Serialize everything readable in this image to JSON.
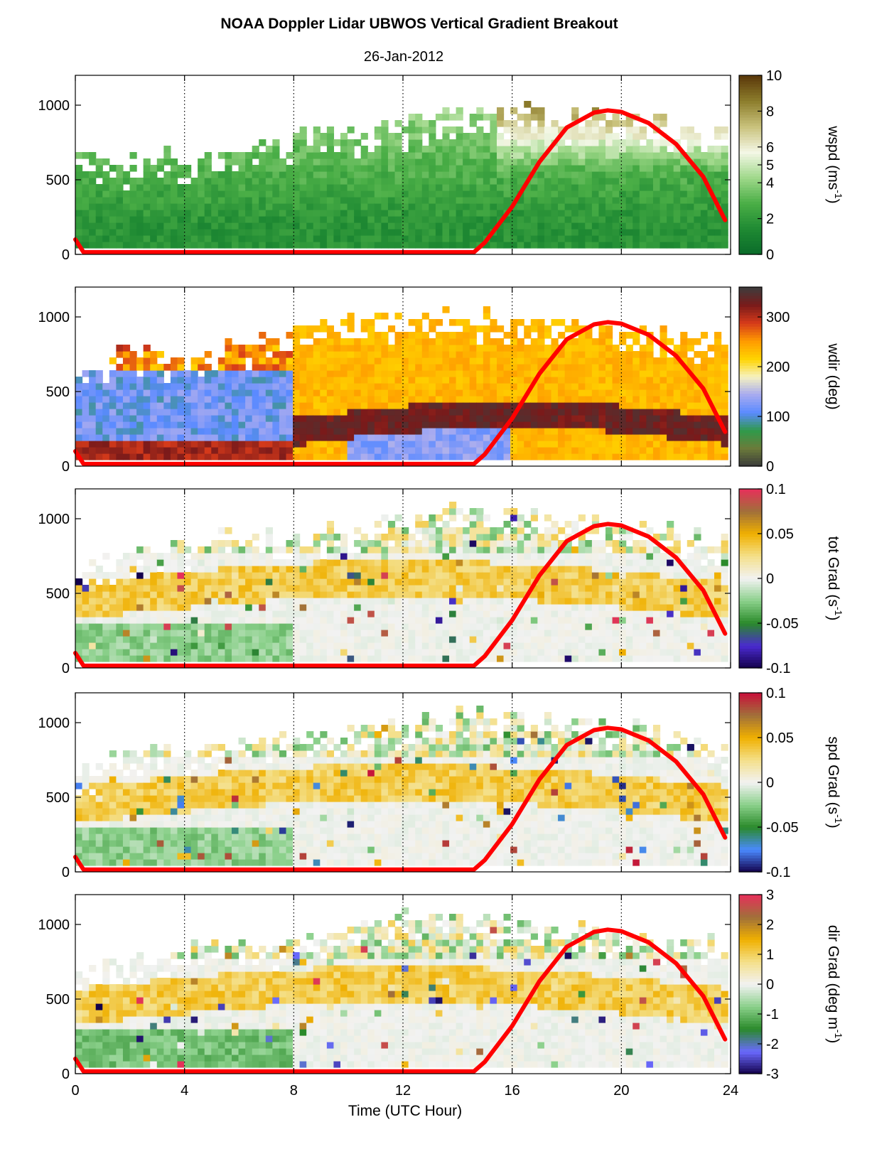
{
  "title": "NOAA Doppler Lidar  UBWOS  Vertical Gradient Breakout",
  "date": "26-Jan-2012",
  "chart_data": {
    "type": "heatmap",
    "x_axis": {
      "label": "Time (UTC Hour)",
      "range": [
        0,
        24
      ],
      "ticks": [
        0,
        4,
        8,
        12,
        16,
        20,
        24
      ],
      "dotted_gridlines": [
        4,
        8,
        12,
        16,
        20
      ]
    },
    "y_axis": {
      "range": [
        0,
        1200
      ],
      "ticks": [
        0,
        500,
        1000
      ]
    },
    "overlay_line": {
      "color": "#ff0000",
      "description_from_chart": "red curve",
      "points": [
        [
          0,
          100
        ],
        [
          0.3,
          15
        ],
        [
          14.6,
          15
        ],
        [
          15,
          80
        ],
        [
          16,
          320
        ],
        [
          17,
          620
        ],
        [
          18,
          850
        ],
        [
          19,
          950
        ],
        [
          19.5,
          965
        ],
        [
          20,
          955
        ],
        [
          21,
          880
        ],
        [
          22,
          740
        ],
        [
          23,
          520
        ],
        [
          23.8,
          230
        ]
      ]
    },
    "panels": [
      {
        "id": "wspd",
        "cbar_label": "wspd (ms",
        "cbar_label_sup": "-1",
        "cbar_label_tail": ")",
        "cbar_ticks": [
          "0",
          "2",
          "4",
          "5",
          "6",
          "8",
          "10"
        ],
        "cbar_tick_values": [
          0,
          2,
          4,
          5,
          6,
          8,
          10
        ],
        "cbar_range": [
          0,
          10
        ],
        "colormap": [
          "#0a6b2a",
          "#1f8a33",
          "#4aae46",
          "#9fd88a",
          "#f4f7e6",
          "#c9c27c",
          "#8d7d2c",
          "#5a380a"
        ],
        "data_top_profile": [
          [
            0,
            650
          ],
          [
            2,
            650
          ],
          [
            4,
            650
          ],
          [
            6,
            720
          ],
          [
            8,
            800
          ],
          [
            10,
            860
          ],
          [
            12,
            900
          ],
          [
            14,
            940
          ],
          [
            16,
            980
          ],
          [
            18,
            960
          ],
          [
            20,
            940
          ],
          [
            22,
            860
          ],
          [
            24,
            820
          ]
        ]
      },
      {
        "id": "wdir",
        "cbar_label": "wdir (deg)",
        "cbar_label_sup": "",
        "cbar_label_tail": "",
        "cbar_ticks": [
          "0",
          "100",
          "200",
          "300"
        ],
        "cbar_tick_values": [
          0,
          100,
          200,
          300
        ],
        "cbar_range": [
          0,
          360
        ],
        "colormap": [
          "#3a3a3a",
          "#6b7a3a",
          "#2f9a4a",
          "#5a8aff",
          "#a7aaf0",
          "#f6f2c0",
          "#ffd400",
          "#ff9a00",
          "#d63a1a",
          "#7a1a1a",
          "#3d3d3d"
        ],
        "data_top_profile": [
          [
            0,
            650
          ],
          [
            2,
            820
          ],
          [
            4,
            700
          ],
          [
            6,
            840
          ],
          [
            8,
            900
          ],
          [
            10,
            960
          ],
          [
            12,
            1000
          ],
          [
            14,
            1020
          ],
          [
            16,
            1000
          ],
          [
            18,
            980
          ],
          [
            20,
            960
          ],
          [
            22,
            900
          ],
          [
            24,
            850
          ]
        ]
      },
      {
        "id": "totgrad",
        "cbar_label": "tot Grad (s",
        "cbar_label_sup": "-1",
        "cbar_label_tail": ")",
        "cbar_ticks": [
          "-0.1",
          "-0.05",
          "0",
          "0.05",
          "0.1"
        ],
        "cbar_tick_values": [
          -0.1,
          -0.05,
          0,
          0.05,
          0.1
        ],
        "cbar_range": [
          -0.1,
          0.1
        ],
        "colormap": [
          "#12004a",
          "#4a2ad0",
          "#2a8a2a",
          "#8ad08a",
          "#f2f2f2",
          "#f4e08a",
          "#f0b000",
          "#a0703a",
          "#e6305a"
        ],
        "data_top_profile": [
          [
            0,
            650
          ],
          [
            2,
            800
          ],
          [
            4,
            850
          ],
          [
            6,
            900
          ],
          [
            8,
            900
          ],
          [
            10,
            950
          ],
          [
            12,
            1000
          ],
          [
            14,
            1050
          ],
          [
            16,
            1050
          ],
          [
            18,
            1000
          ],
          [
            20,
            980
          ],
          [
            22,
            900
          ],
          [
            24,
            850
          ]
        ]
      },
      {
        "id": "spdgrad",
        "cbar_label": "spd Grad (s",
        "cbar_label_sup": "-1",
        "cbar_label_tail": ")",
        "cbar_ticks": [
          "-0.1",
          "-0.05",
          "0",
          "0.05",
          "0.1"
        ],
        "cbar_tick_values": [
          -0.1,
          -0.05,
          0,
          0.05,
          0.1
        ],
        "cbar_range": [
          -0.1,
          0.1
        ],
        "colormap": [
          "#12004a",
          "#4a8aff",
          "#2a8a2a",
          "#8ad08a",
          "#f2f2f2",
          "#f4e08a",
          "#f0b000",
          "#a0703a",
          "#c8103a"
        ],
        "data_top_profile": [
          [
            0,
            650
          ],
          [
            2,
            800
          ],
          [
            4,
            850
          ],
          [
            6,
            900
          ],
          [
            8,
            900
          ],
          [
            10,
            950
          ],
          [
            12,
            1000
          ],
          [
            14,
            1050
          ],
          [
            16,
            1050
          ],
          [
            18,
            1000
          ],
          [
            20,
            980
          ],
          [
            22,
            900
          ],
          [
            24,
            850
          ]
        ]
      },
      {
        "id": "dirgrad",
        "cbar_label": "dir Grad (deg m",
        "cbar_label_sup": "-1",
        "cbar_label_tail": ")",
        "cbar_ticks": [
          "-3",
          "-2",
          "-1",
          "0",
          "1",
          "2",
          "3"
        ],
        "cbar_tick_values": [
          -3,
          -2,
          -1,
          0,
          1,
          2,
          3
        ],
        "cbar_range": [
          -3,
          3
        ],
        "colormap": [
          "#12004a",
          "#6a6aff",
          "#2a8a2a",
          "#8ad08a",
          "#f2f2f2",
          "#f4e08a",
          "#f0b000",
          "#a0703a",
          "#e6305a"
        ],
        "data_top_profile": [
          [
            0,
            650
          ],
          [
            2,
            800
          ],
          [
            4,
            850
          ],
          [
            6,
            900
          ],
          [
            8,
            900
          ],
          [
            10,
            1000
          ],
          [
            12,
            1050
          ],
          [
            14,
            1050
          ],
          [
            16,
            1000
          ],
          [
            18,
            980
          ],
          [
            20,
            960
          ],
          [
            22,
            900
          ],
          [
            24,
            850
          ]
        ]
      }
    ]
  }
}
